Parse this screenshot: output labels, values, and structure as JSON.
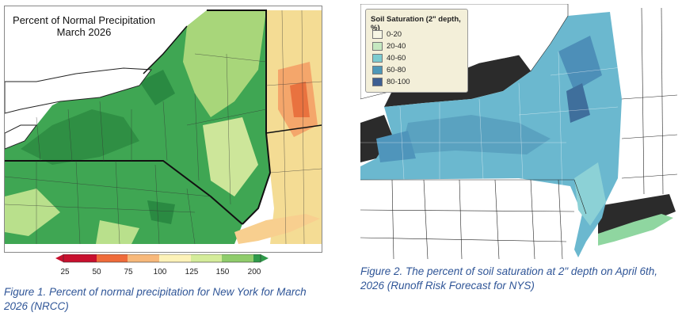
{
  "figure1": {
    "title_line1": "Percent of Normal Precipitation",
    "title_line2": "March 2026",
    "colorbar_labels": [
      "25",
      "50",
      "75",
      "100",
      "125",
      "150",
      "200"
    ],
    "colorbar_colors": [
      "#c8102e",
      "#ef6b3a",
      "#f7b87a",
      "#fdf2b8",
      "#d4ec9a",
      "#8fcc6b",
      "#2f9a4a"
    ],
    "caption": "Figure 1. Percent of normal precipitation for New York for March 2026 (NRCC)"
  },
  "figure2": {
    "legend_title": "Soil Saturation (2\" depth, %)",
    "legend_items": [
      {
        "label": "0-20",
        "color": "#f7f6e4"
      },
      {
        "label": "20-40",
        "color": "#c5e8c0"
      },
      {
        "label": "40-60",
        "color": "#7ccbd0"
      },
      {
        "label": "60-80",
        "color": "#4d98b8"
      },
      {
        "label": "80-100",
        "color": "#3d5f92"
      }
    ],
    "caption": "Figure 2. The percent of soil saturation at 2\" depth on April 6th, 2026 (Runoff Risk Forecast for NYS)"
  }
}
